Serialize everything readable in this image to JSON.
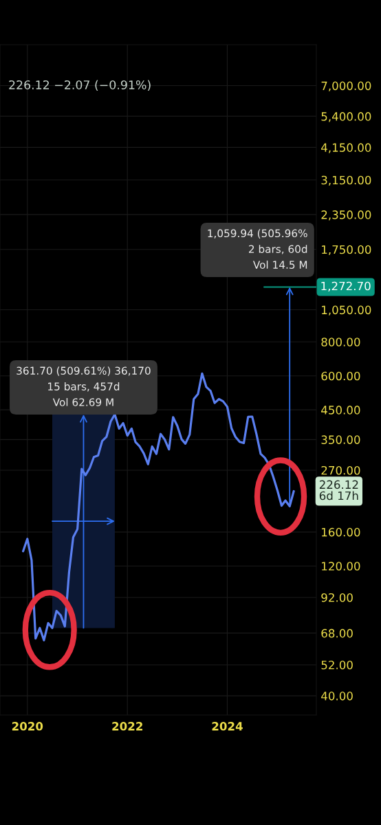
{
  "chart_data": {
    "type": "line",
    "subtitle": "226.12 −2.07 (−0.91%)",
    "x": [
      "2019-12",
      "2020-01",
      "2020-02",
      "2020-03",
      "2020-04",
      "2020-05",
      "2020-06",
      "2020-07",
      "2020-08",
      "2020-09",
      "2020-10",
      "2020-11",
      "2020-12",
      "2021-01",
      "2021-02",
      "2021-03",
      "2021-04",
      "2021-05",
      "2021-06",
      "2021-07",
      "2021-08",
      "2021-09",
      "2021-10",
      "2021-11",
      "2021-12",
      "2022-01",
      "2022-02",
      "2022-03",
      "2022-04",
      "2022-05",
      "2022-06",
      "2022-07",
      "2022-08",
      "2022-09",
      "2022-10",
      "2022-11",
      "2022-12",
      "2023-01",
      "2023-02",
      "2023-03",
      "2023-04",
      "2023-05",
      "2023-06",
      "2023-07",
      "2023-08",
      "2023-09",
      "2023-10",
      "2023-11",
      "2023-12",
      "2024-01",
      "2024-02",
      "2024-03",
      "2024-04",
      "2024-05",
      "2024-06",
      "2024-07",
      "2024-08",
      "2024-09",
      "2024-10",
      "2024-11",
      "2024-12",
      "2025-01",
      "2025-02",
      "2025-03",
      "2025-04",
      "2025-05"
    ],
    "series": [
      {
        "color": "#5a7ff0",
        "values": [
          136,
          151,
          126,
          65,
          71,
          64,
          74,
          71,
          82,
          79,
          72,
          114,
          153,
          164,
          273,
          259,
          275,
          302,
          306,
          346,
          358,
          408,
          433,
          384,
          402,
          362,
          384,
          343,
          330,
          311,
          284,
          330,
          310,
          367,
          350,
          322,
          423,
          393,
          351,
          338,
          365,
          493,
          515,
          612,
          546,
          528,
          477,
          493,
          484,
          462,
          385,
          358,
          343,
          340,
          424,
          425,
          367,
          310,
          300,
          283,
          256,
          228,
          200,
          209,
          199,
          226.12
        ]
      }
    ],
    "log": true,
    "xlim": [
      "2019-06-15",
      "2025-10-13"
    ],
    "xticks": [
      "2020",
      "2022",
      "2024"
    ],
    "ylim": [
      34,
      9900
    ],
    "yticks": [
      {
        "value": 7000,
        "label": "7,000.00"
      },
      {
        "value": 5400,
        "label": "5,400.00"
      },
      {
        "value": 4150,
        "label": "4,150.00"
      },
      {
        "value": 3150,
        "label": "3,150.00"
      },
      {
        "value": 2350,
        "label": "2,350.00"
      },
      {
        "value": 1750,
        "label": "1,750.00"
      },
      {
        "value": 1050,
        "label": "1,050.00"
      },
      {
        "value": 800,
        "label": "800.00"
      },
      {
        "value": 600,
        "label": "600.00"
      },
      {
        "value": 450,
        "label": "450.00"
      },
      {
        "value": 350,
        "label": "350.00"
      },
      {
        "value": 270,
        "label": "270.00"
      },
      {
        "value": 160,
        "label": "160.00"
      },
      {
        "value": 120,
        "label": "120.00"
      },
      {
        "value": 92,
        "label": "92.00"
      },
      {
        "value": 68,
        "label": "68.00"
      },
      {
        "value": 52,
        "label": "52.00"
      },
      {
        "value": 40,
        "label": "40.00"
      }
    ],
    "grid": true,
    "ref_lines": [
      {
        "axis": "y",
        "value": 1272.7,
        "label": "1,272.70",
        "color": "#089981"
      }
    ],
    "bands": [
      {
        "axis": "x",
        "from": "2020-07",
        "to": "2021-10",
        "color": "#0c1834",
        "label": "361.70 (509.61%) 36,170\n15 bars, 457d\nVol 62.69 M"
      }
    ],
    "annotations": [
      {
        "text": "1,059.94 (505.96%\n2 bars, 60d\nVol 14.5 M",
        "x": "2025-04",
        "y": 1272.7
      },
      {
        "text": "226.12\n6d 17h",
        "x": "2025-05",
        "y": 226.12
      }
    ]
  }
}
